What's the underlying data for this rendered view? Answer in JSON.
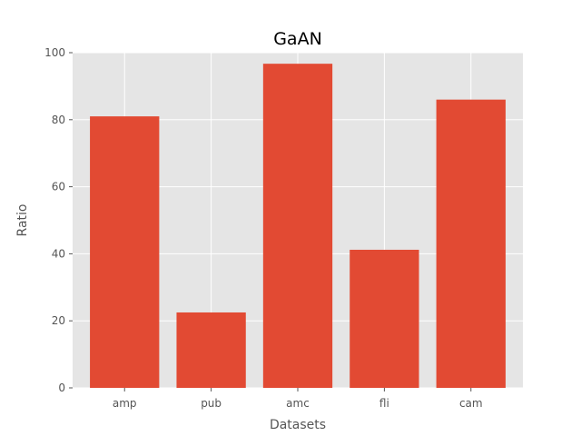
{
  "chart_data": {
    "type": "bar",
    "title": "GaAN",
    "xlabel": "Datasets",
    "ylabel": "Ratio",
    "categories": [
      "amp",
      "pub",
      "amc",
      "fli",
      "cam"
    ],
    "values": [
      81,
      22.5,
      96.7,
      41.2,
      86
    ],
    "ylim": [
      0,
      100
    ],
    "yticks": [
      0,
      20,
      40,
      60,
      80,
      100
    ],
    "grid": true,
    "bar_color": "#E24A33",
    "plot_background": "#E5E5E5",
    "grid_color": "#FFFFFF"
  }
}
